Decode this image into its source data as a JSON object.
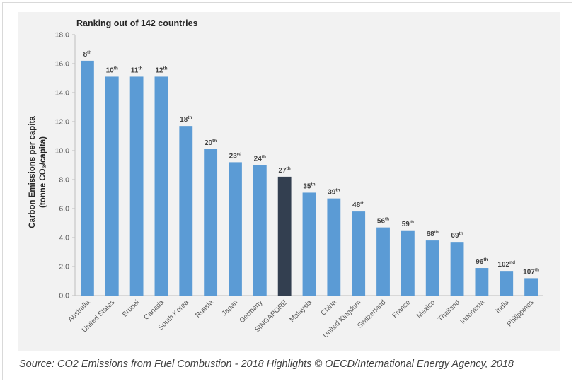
{
  "chart_data": {
    "type": "bar",
    "title": "Ranking out of 142 countries",
    "xlabel": "",
    "ylabel_lines": [
      "Carbon Emissions per capita",
      "(tonne CO₂/capita)"
    ],
    "ylim": [
      0,
      18
    ],
    "yticks": [
      "0.0",
      "2.0",
      "4.0",
      "6.0",
      "8.0",
      "10.0",
      "12.0",
      "14.0",
      "16.0",
      "18.0"
    ],
    "grid": false,
    "categories": [
      "Australia",
      "United States",
      "Brunei",
      "Canada",
      "South Korea",
      "Russia",
      "Japan",
      "Germany",
      "SINGAPORE",
      "Malaysia",
      "China",
      "United Kingdom",
      "Switzerland",
      "France",
      "Mexico",
      "Thailand",
      "Indonesia",
      "India",
      "Philippines"
    ],
    "values": [
      16.2,
      15.1,
      15.1,
      15.1,
      11.7,
      10.1,
      9.2,
      9.0,
      8.2,
      7.1,
      6.7,
      5.8,
      4.7,
      4.5,
      3.8,
      3.7,
      1.9,
      1.7,
      1.2
    ],
    "rank_numbers": [
      "8",
      "10",
      "11",
      "12",
      "18",
      "20",
      "23",
      "24",
      "27",
      "35",
      "39",
      "48",
      "56",
      "59",
      "68",
      "69",
      "96",
      "102",
      "107"
    ],
    "rank_suffixes": [
      "th",
      "th",
      "th",
      "th",
      "th",
      "th",
      "rd",
      "th",
      "th",
      "th",
      "th",
      "th",
      "th",
      "th",
      "th",
      "th",
      "th",
      "nd",
      "th"
    ],
    "colors": {
      "bar": "#5b9bd5",
      "highlight": "#333f50",
      "highlight_index": 8,
      "axis": "#bfbfbf",
      "text": "#404040",
      "label": "#595959"
    }
  },
  "source_text": "Source: CO2 Emissions from Fuel Combustion - 2018 Highlights © OECD/International Energy Agency, 2018"
}
